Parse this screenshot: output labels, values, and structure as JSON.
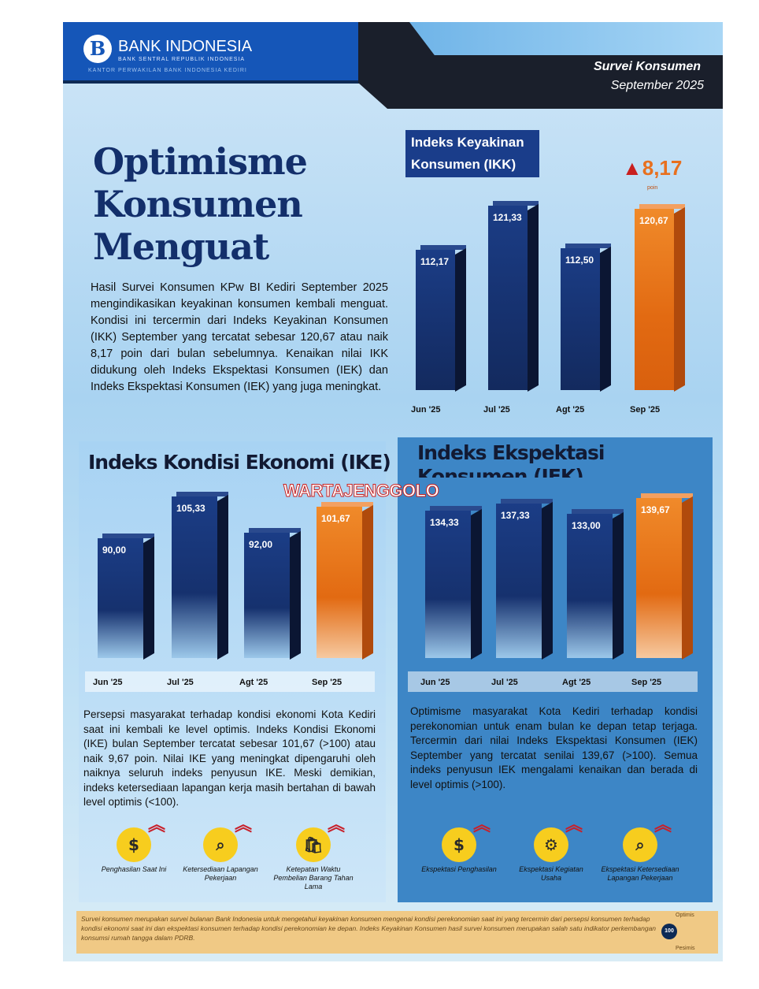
{
  "header": {
    "bank_name": "BANK INDONESIA",
    "bank_sub": "BANK SENTRAL REPUBLIK INDONESIA",
    "office": "KANTOR PERWAKILAN BANK INDONESIA KEDIRI",
    "logo_text": "B",
    "survey": "Survei Konsumen",
    "period": "September 2025"
  },
  "main": {
    "title_lines": [
      "Optimisme",
      "Konsumen",
      "Menguat"
    ],
    "paragraph": "Hasil Survei Konsumen KPw BI Kediri September 2025 mengindikasikan keyakinan konsumen kembali menguat. Kondisi ini tercermin dari Indeks Keyakinan Konsumen (IKK) September yang tercatat sebesar 120,67 atau naik 8,17 poin dari bulan sebelumnya. Kenaikan nilai IKK didukung oleh Indeks Ekspektasi Konsumen (IEK) dan Indeks Ekspektasi Konsumen (IEK) yang juga meningkat."
  },
  "ikk_delta": {
    "value": "8,17",
    "unit": "poin",
    "direction": "up"
  },
  "ike_text": "Persepsi masyarakat terhadap kondisi ekonomi Kota Kediri saat ini kembali ke level optimis. Indeks Kondisi Ekonomi (IKE) bulan September tercatat sebesar 101,67 (>100) atau naik 9,67 poin. Nilai IKE yang meningkat dipengaruhi oleh naiknya seluruh indeks penyusun IKE. Meski demikian, indeks ketersediaan lapangan kerja masih bertahan di bawah level optimis (<100).",
  "iek_text": "Optimisme masyarakat Kota Kediri terhadap kondisi perekonomian untuk enam bulan ke depan tetap terjaga. Tercermin dari nilai Indeks Ekspektasi Konsumen (IEK) September yang tercatat senilai 139,67 (>100). Semua indeks penyusun IEK mengalami kenaikan dan berada di level optimis (>100).",
  "ike_icons": [
    {
      "icon": "money-hand-icon",
      "label": "Penghasilan Saat Ini"
    },
    {
      "icon": "job-search-icon",
      "label": "Ketersediaan Lapangan Pekerjaan"
    },
    {
      "icon": "shopping-bag-icon",
      "label": "Ketepatan Waktu Pembelian Barang Tahan Lama"
    }
  ],
  "iek_icons": [
    {
      "icon": "money-hand-icon",
      "label": "Ekspektasi Penghasilan"
    },
    {
      "icon": "business-icon",
      "label": "Ekspektasi Kegiatan Usaha"
    },
    {
      "icon": "job-search-icon",
      "label": "Ekspektasi Ketersediaan Lapangan Pekerjaan"
    }
  ],
  "footer": {
    "text": "Survei konsumen merupakan survei bulanan Bank Indonesia untuk mengetahui keyakinan konsumen mengenai kondisi perekonomian saat ini yang tercermin dari persepsi konsumen terhadap kondisi ekonomi saat ini dan ekspektasi konsumen terhadap kondisi perekonomian ke depan. Indeks Keyakinan Konsumen hasil survei konsumen merupakan salah satu indikator perkembangan konsumsi rumah tangga dalam PDRB.",
    "gauge_value": "100",
    "gauge_top": "Optimis",
    "gauge_bottom": "Pesimis"
  },
  "watermark": "WARTAJENGGOLO",
  "colors": {
    "bar_default": "#1a3d8a",
    "bar_highlight": "#e8701e",
    "arrow": "#c8202a"
  },
  "chart_data": [
    {
      "type": "bar",
      "title": "Indeks Keyakinan Konsumen (IKK)",
      "categories": [
        "Jun '25",
        "Jul '25",
        "Agt '25",
        "Sep '25"
      ],
      "values": [
        112.17,
        121.33,
        112.5,
        120.67
      ],
      "labels": [
        "112,17",
        "121,33",
        "112,50",
        "120,67"
      ],
      "highlight": "Sep '25"
    },
    {
      "type": "bar",
      "title": "Indeks Kondisi Ekonomi (IKE)",
      "categories": [
        "Jun '25",
        "Jul '25",
        "Agt '25",
        "Sep '25"
      ],
      "values": [
        90.0,
        105.33,
        92.0,
        101.67
      ],
      "labels": [
        "90,00",
        "105,33",
        "92,00",
        "101,67"
      ],
      "highlight": "Sep '25"
    },
    {
      "type": "bar",
      "title": "Indeks Ekspektasi Konsumen (IEK)",
      "categories": [
        "Jun '25",
        "Jul '25",
        "Agt '25",
        "Sep '25"
      ],
      "values": [
        134.33,
        137.33,
        133.0,
        139.67
      ],
      "labels": [
        "134,33",
        "137,33",
        "133,00",
        "139,67"
      ],
      "highlight": "Sep '25"
    }
  ]
}
